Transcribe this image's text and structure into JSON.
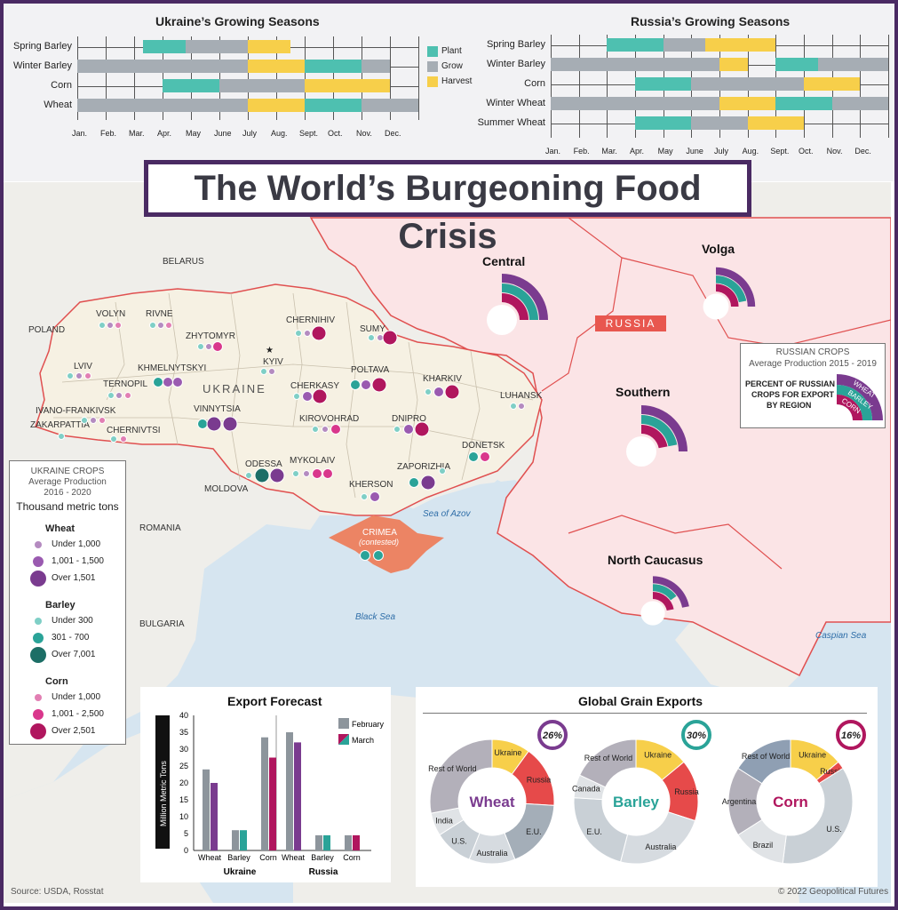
{
  "title": "The World’s Burgeoning Food Crisis",
  "colors": {
    "plant": "#4ec0b0",
    "grow": "#a6adb4",
    "harvest": "#f7cf4a",
    "wheat": "#7a3b8f",
    "barley": "#2aa398",
    "corn": "#b0165e",
    "light_wheat": "#b48bc0",
    "light_barley": "#7fcfc6",
    "light_corn": "#e27fb3",
    "russia_fill": "#fbe4e6",
    "ukraine_fill": "#f6f1e3",
    "crimea": "#ec8464",
    "sea": "#d6e5f0",
    "frame": "#4a2a63"
  },
  "ukraine_seasons": {
    "title": "Ukraine’s Growing Seasons",
    "months": [
      "Jan.",
      "Feb.",
      "Mar.",
      "Apr.",
      "May",
      "June",
      "July",
      "Aug.",
      "Sept.",
      "Oct.",
      "Nov.",
      "Dec."
    ],
    "crops": [
      {
        "name": "Spring Barley",
        "bars": [
          {
            "s": 2.3,
            "e": 3.8,
            "t": "plant"
          },
          {
            "s": 3.8,
            "e": 6.0,
            "t": "grow"
          },
          {
            "s": 6.0,
            "e": 7.5,
            "t": "harvest"
          }
        ]
      },
      {
        "name": "Winter Barley",
        "bars": [
          {
            "s": 0,
            "e": 6.0,
            "t": "grow"
          },
          {
            "s": 6.0,
            "e": 8.0,
            "t": "harvest"
          },
          {
            "s": 8.0,
            "e": 10.0,
            "t": "plant"
          },
          {
            "s": 10.0,
            "e": 11.0,
            "t": "grow"
          }
        ]
      },
      {
        "name": "Corn",
        "bars": [
          {
            "s": 3.0,
            "e": 5.0,
            "t": "plant"
          },
          {
            "s": 5.0,
            "e": 8.0,
            "t": "grow"
          },
          {
            "s": 8.0,
            "e": 11.0,
            "t": "harvest"
          }
        ]
      },
      {
        "name": "Wheat",
        "bars": [
          {
            "s": 0,
            "e": 6.0,
            "t": "grow"
          },
          {
            "s": 6.0,
            "e": 8.0,
            "t": "harvest"
          },
          {
            "s": 8.0,
            "e": 10.0,
            "t": "plant"
          },
          {
            "s": 10.0,
            "e": 12.0,
            "t": "grow"
          }
        ]
      }
    ],
    "legend": [
      {
        "key": "plant",
        "label": "Plant"
      },
      {
        "key": "grow",
        "label": "Grow"
      },
      {
        "key": "harvest",
        "label": "Harvest"
      }
    ]
  },
  "russia_seasons": {
    "title": "Russia’s Growing Seasons",
    "months": [
      "Jan.",
      "Feb.",
      "Mar.",
      "Apr.",
      "May",
      "June",
      "July",
      "Aug.",
      "Sept.",
      "Oct.",
      "Nov.",
      "Dec."
    ],
    "crops": [
      {
        "name": "Spring Barley",
        "bars": [
          {
            "s": 2.0,
            "e": 4.0,
            "t": "plant"
          },
          {
            "s": 4.0,
            "e": 5.5,
            "t": "grow"
          },
          {
            "s": 5.5,
            "e": 8.0,
            "t": "harvest"
          }
        ]
      },
      {
        "name": "Winter Barley",
        "bars": [
          {
            "s": 0,
            "e": 6.0,
            "t": "grow"
          },
          {
            "s": 6.0,
            "e": 7.0,
            "t": "harvest"
          },
          {
            "s": 8.0,
            "e": 9.5,
            "t": "plant"
          },
          {
            "s": 9.5,
            "e": 12.0,
            "t": "grow"
          }
        ]
      },
      {
        "name": "Corn",
        "bars": [
          {
            "s": 3.0,
            "e": 5.0,
            "t": "plant"
          },
          {
            "s": 5.0,
            "e": 9.0,
            "t": "grow"
          },
          {
            "s": 9.0,
            "e": 11.0,
            "t": "harvest"
          }
        ]
      },
      {
        "name": "Winter Wheat",
        "bars": [
          {
            "s": 0,
            "e": 6.0,
            "t": "grow"
          },
          {
            "s": 6.0,
            "e": 8.0,
            "t": "harvest"
          },
          {
            "s": 8.0,
            "e": 10.0,
            "t": "plant"
          },
          {
            "s": 10.0,
            "e": 12.0,
            "t": "grow"
          }
        ]
      },
      {
        "name": "Summer Wheat",
        "bars": [
          {
            "s": 3.0,
            "e": 5.0,
            "t": "plant"
          },
          {
            "s": 5.0,
            "e": 7.0,
            "t": "grow"
          },
          {
            "s": 7.0,
            "e": 9.0,
            "t": "harvest"
          }
        ]
      }
    ]
  },
  "map": {
    "countries": {
      "belarus": "BELARUS",
      "poland": "POLAND",
      "ukraine": "UKRAINE",
      "moldova": "MOLDOVA",
      "romania": "ROMANIA",
      "bulgaria": "BULGARIA",
      "russia": "RUSSIA"
    },
    "seas": {
      "azov": "Sea of Azov",
      "black": "Black Sea",
      "caspian": "Caspian Sea"
    },
    "crimea": "CRIMEA",
    "crimea_note": "(contested)",
    "capital": "KYIV",
    "oblasts": [
      "VOLYN",
      "RIVNE",
      "ZHYTOMYR",
      "CHERNIHIV",
      "SUMY",
      "LVIV",
      "KYIV",
      "TERNOPIL",
      "KHMELNYTSKYI",
      "POLTAVA",
      "KHARKIV",
      "CHERKASY",
      "IVANO-FRANKIVSK",
      "VINNYTSIA",
      "LUHANSK",
      "ZAKARPATTIA",
      "CHERNIVTSI",
      "KIROVOHRAD",
      "DNIPRO",
      "DONETSK",
      "ODESSA",
      "MYKOLAIV",
      "ZAPORIZHIA",
      "KHERSON"
    ],
    "russian_regions": [
      "Central",
      "Volga",
      "Southern",
      "North Caucasus"
    ]
  },
  "ukraine_legend": {
    "title": "UKRAINE CROPS",
    "subtitle1": "Average Production",
    "subtitle2": "2016 - 2020",
    "unit": "Thousand metric tons",
    "groups": [
      {
        "name": "Wheat",
        "items": [
          "Under 1,000",
          "1,001 - 1,500",
          "Over 1,501"
        ]
      },
      {
        "name": "Barley",
        "items": [
          "Under 300",
          "301 - 700",
          "Over 7,001"
        ]
      },
      {
        "name": "Corn",
        "items": [
          "Under 1,000",
          "1,001 - 2,500",
          "Over 2,501"
        ]
      }
    ]
  },
  "russia_legend": {
    "title": "RUSSIAN CROPS",
    "subtitle": "Average Production 2015 - 2019",
    "desc1": "PERCENT OF RUSSIAN",
    "desc2": "CROPS FOR EXPORT",
    "desc3": "BY REGION",
    "arc_labels": [
      "WHEAT",
      "BARLEY",
      "CORN"
    ]
  },
  "chart_data": [
    {
      "type": "bar",
      "title": "Export Forecast",
      "ylabel": "Million Metric Tons",
      "ylim": [
        0,
        40
      ],
      "yticks": [
        0,
        5,
        10,
        15,
        20,
        25,
        30,
        35,
        40
      ],
      "groups": [
        "Ukraine",
        "Russia"
      ],
      "categories": [
        "Wheat",
        "Barley",
        "Corn"
      ],
      "series": [
        {
          "name": "February",
          "values": {
            "Ukraine": [
              24,
              6,
              33.5
            ],
            "Russia": [
              35,
              4.5,
              4.5
            ]
          }
        },
        {
          "name": "March",
          "values": {
            "Ukraine": [
              20,
              6,
              27.5
            ],
            "Russia": [
              32,
              4.5,
              4.5
            ]
          }
        }
      ]
    },
    {
      "type": "pie",
      "title": "Global Grain Exports",
      "charts": [
        {
          "name": "Wheat",
          "highlight": "26%",
          "slices": [
            {
              "label": "Ukraine",
              "value": 10
            },
            {
              "label": "Russia",
              "value": 16
            },
            {
              "label": "E.U.",
              "value": 18
            },
            {
              "label": "Australia",
              "value": 12
            },
            {
              "label": "U.S.",
              "value": 10
            },
            {
              "label": "India",
              "value": 6
            },
            {
              "label": "Rest of World",
              "value": 28
            }
          ]
        },
        {
          "name": "Barley",
          "highlight": "30%",
          "slices": [
            {
              "label": "Ukraine",
              "value": 14
            },
            {
              "label": "Russia",
              "value": 16
            },
            {
              "label": "Australia",
              "value": 24
            },
            {
              "label": "E.U.",
              "value": 22
            },
            {
              "label": "Canada",
              "value": 6
            },
            {
              "label": "Rest of World",
              "value": 18
            }
          ]
        },
        {
          "name": "Corn",
          "highlight": "16%",
          "slices": [
            {
              "label": "Ukraine",
              "value": 14
            },
            {
              "label": "Russia",
              "value": 2
            },
            {
              "label": "U.S.",
              "value": 36
            },
            {
              "label": "Brazil",
              "value": 14
            },
            {
              "label": "Argentina",
              "value": 18
            },
            {
              "label": "Rest of World",
              "value": 16
            }
          ]
        }
      ]
    }
  ],
  "footer": {
    "source": "Source: USDA, Rosstat",
    "credit": "© 2022 Geopolitical Futures"
  }
}
